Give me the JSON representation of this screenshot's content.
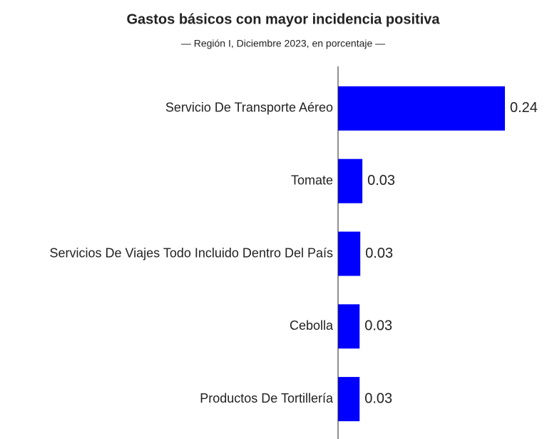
{
  "chart_data": {
    "type": "hbar",
    "title": "Gastos básicos con mayor incidencia positiva",
    "subtitle": "— Región I, Diciembre 2023, en porcentaje —",
    "categories": [
      "Servicio De Transporte Aéreo",
      "Tomate",
      "Servicios De Viajes Todo Incluido Dentro Del País",
      "Cebolla",
      "Productos De Tortillería"
    ],
    "values": [
      0.24,
      0.035,
      0.032,
      0.031,
      0.031
    ],
    "value_labels": [
      "0.24",
      "0.03",
      "0.03",
      "0.03",
      "0.03"
    ],
    "color": "#0000ff",
    "xlim": [
      0,
      0.3
    ]
  }
}
